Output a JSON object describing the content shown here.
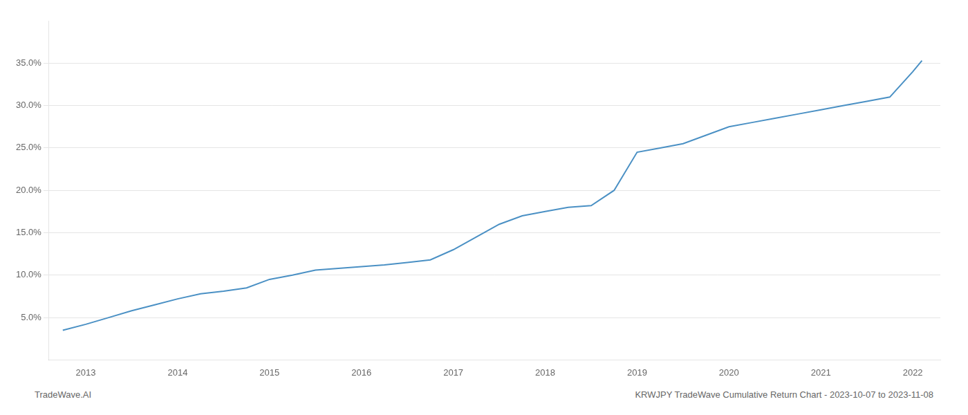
{
  "chart_data": {
    "type": "line",
    "x": [
      2012.75,
      2013.0,
      2013.25,
      2013.5,
      2013.75,
      2014.0,
      2014.25,
      2014.5,
      2014.75,
      2015.0,
      2015.25,
      2015.5,
      2015.75,
      2016.0,
      2016.25,
      2016.5,
      2016.75,
      2017.0,
      2017.25,
      2017.5,
      2017.75,
      2018.0,
      2018.25,
      2018.5,
      2018.75,
      2019.0,
      2019.25,
      2019.5,
      2019.75,
      2020.0,
      2020.25,
      2020.5,
      2020.75,
      2021.0,
      2021.25,
      2021.5,
      2021.75,
      2022.0,
      2022.1
    ],
    "values": [
      3.5,
      4.2,
      5.0,
      5.8,
      6.5,
      7.2,
      7.8,
      8.1,
      8.5,
      9.5,
      10.0,
      10.6,
      10.8,
      11.0,
      11.2,
      11.5,
      11.8,
      13.0,
      14.5,
      16.0,
      17.0,
      17.5,
      18.0,
      18.2,
      20.0,
      24.5,
      25.0,
      25.5,
      26.5,
      27.5,
      28.0,
      28.5,
      29.0,
      29.5,
      30.0,
      30.5,
      31.0,
      34.0,
      35.3
    ],
    "color": "#4a90c4",
    "xlim": [
      2012.6,
      2022.3
    ],
    "xticks": [
      2013,
      2014,
      2015,
      2016,
      2017,
      2018,
      2019,
      2020,
      2021,
      2022
    ],
    "ylim": [
      0,
      40
    ],
    "yticks": [
      {
        "value": 5.0,
        "label": "5.0%"
      },
      {
        "value": 10.0,
        "label": "10.0%"
      },
      {
        "value": 15.0,
        "label": "15.0%"
      },
      {
        "value": 20.0,
        "label": "20.0%"
      },
      {
        "value": 25.0,
        "label": "25.0%"
      },
      {
        "value": 30.0,
        "label": "30.0%"
      },
      {
        "value": 35.0,
        "label": "35.0%"
      }
    ],
    "grid": "y",
    "annotations": [
      "TradeWave.AI",
      "KRWJPY TradeWave Cumulative Return Chart - 2023-10-07 to 2023-11-08"
    ]
  }
}
